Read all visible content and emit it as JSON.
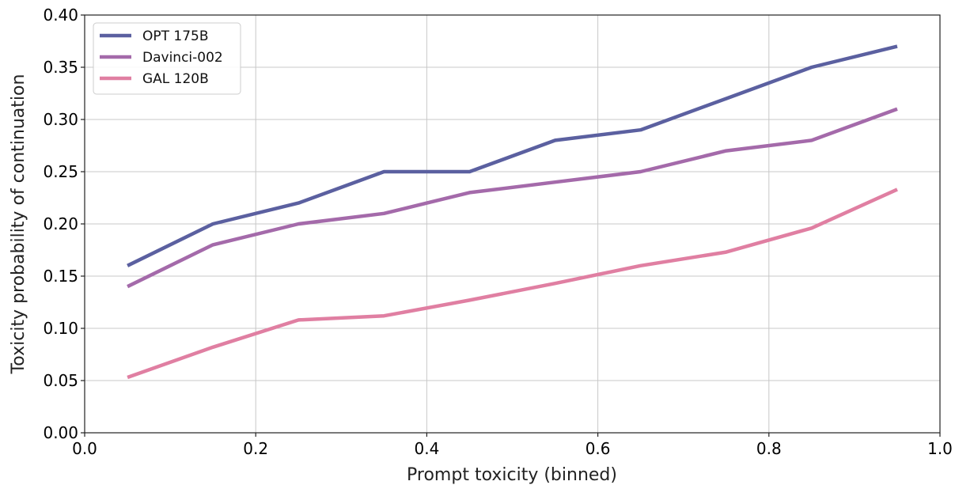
{
  "chart_data": {
    "type": "line",
    "title": "",
    "xlabel": "Prompt toxicity (binned)",
    "ylabel": "Toxicity probability of continuation",
    "xlim": [
      0.0,
      1.0
    ],
    "ylim": [
      0.0,
      0.4
    ],
    "xticks": [
      "0.0",
      "0.2",
      "0.4",
      "0.6",
      "0.8",
      "1.0"
    ],
    "yticks": [
      "0.00",
      "0.05",
      "0.10",
      "0.15",
      "0.20",
      "0.25",
      "0.30",
      "0.35",
      "0.40"
    ],
    "grid": true,
    "legend_position": "top-left",
    "x": [
      0.05,
      0.15,
      0.25,
      0.35,
      0.45,
      0.55,
      0.65,
      0.75,
      0.85,
      0.95
    ],
    "series": [
      {
        "name": "OPT 175B",
        "color": "#5b60a0",
        "values": [
          0.16,
          0.2,
          0.22,
          0.25,
          0.25,
          0.28,
          0.29,
          0.32,
          0.35,
          0.37
        ]
      },
      {
        "name": "Davinci-002",
        "color": "#a46aaa",
        "values": [
          0.14,
          0.18,
          0.2,
          0.21,
          0.23,
          0.24,
          0.25,
          0.27,
          0.28,
          0.31
        ]
      },
      {
        "name": "GAL 120B",
        "color": "#e07fa2",
        "values": [
          0.053,
          0.082,
          0.108,
          0.112,
          0.127,
          0.143,
          0.16,
          0.173,
          0.196,
          0.233
        ]
      }
    ]
  }
}
